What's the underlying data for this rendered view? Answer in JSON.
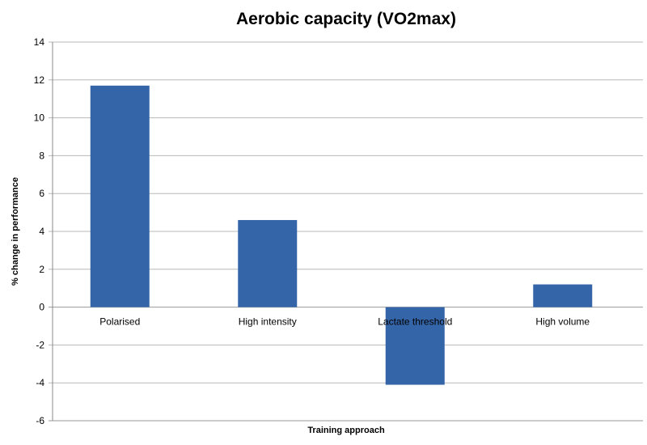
{
  "chart_data": {
    "type": "bar",
    "title": "Aerobic capacity (VO2max)",
    "xlabel": "Training approach",
    "ylabel": "% change in performance",
    "categories": [
      "Polarised",
      "High intensity",
      "Lactate threshold",
      "High volume"
    ],
    "values": [
      11.7,
      4.6,
      -4.1,
      1.2
    ],
    "ylim": [
      -6,
      14
    ],
    "yticks": [
      -6,
      -4,
      -2,
      0,
      2,
      4,
      6,
      8,
      10,
      12,
      14
    ],
    "grid": true,
    "legend": "none",
    "bar_color": "#3465a8",
    "grid_color": "#b8b8b8"
  }
}
